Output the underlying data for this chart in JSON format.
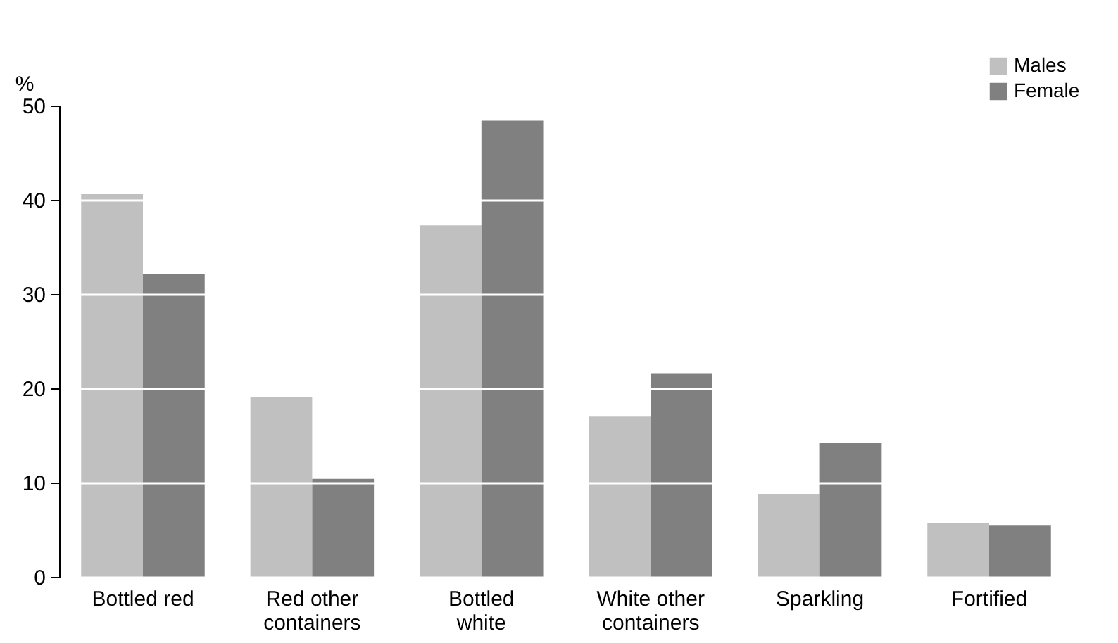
{
  "chart_data": {
    "type": "bar",
    "ylabel": "%",
    "categories": [
      "Bottled red",
      "Red other containers",
      "Bottled white",
      "White other containers",
      "Sparkling",
      "Fortified"
    ],
    "series": [
      {
        "name": "Males",
        "color": "#c0c0c0",
        "values": [
          40.6,
          19.1,
          37.3,
          17.0,
          8.8,
          5.7
        ]
      },
      {
        "name": "Female",
        "color": "#808080",
        "values": [
          32.1,
          10.4,
          48.4,
          21.6,
          14.2,
          5.5
        ]
      }
    ],
    "ylim": [
      0,
      50
    ],
    "yticks": [
      0,
      10,
      20,
      30,
      40,
      50
    ],
    "grid": "y",
    "legend": "top right"
  }
}
